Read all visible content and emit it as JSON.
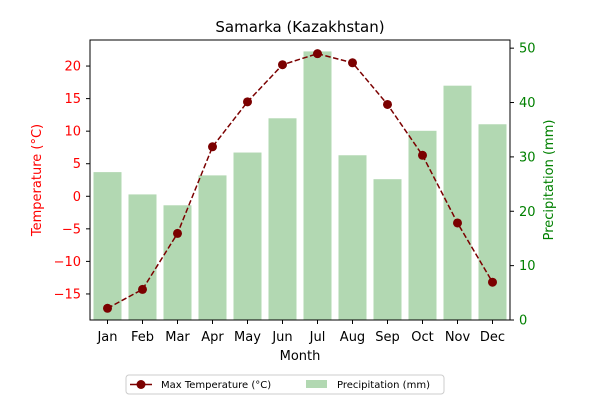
{
  "chart_data": {
    "type": "bar+line",
    "title": "Samarka (Kazakhstan)",
    "xlabel": "Month",
    "ylabel_left": "Temperature (°C)",
    "ylabel_right": "Precipitation (mm)",
    "categories": [
      "Jan",
      "Feb",
      "Mar",
      "Apr",
      "May",
      "Jun",
      "Jul",
      "Aug",
      "Sep",
      "Oct",
      "Nov",
      "Dec"
    ],
    "ylim_left": [
      -19,
      24
    ],
    "ylim_right": [
      0,
      51.5
    ],
    "yticks_left": [
      -15,
      -10,
      -5,
      0,
      5,
      10,
      15,
      20
    ],
    "yticks_left_labels": [
      "−15",
      "−10",
      "−5",
      "0",
      "5",
      "10",
      "15",
      "20"
    ],
    "yticks_right": [
      0,
      10,
      20,
      30,
      40,
      50
    ],
    "grid": false,
    "legend_position": "bottom-center",
    "series": [
      {
        "name": "Max Temperature (°C)",
        "kind": "line",
        "axis": "left",
        "color": "#7b0000",
        "values": [
          -17.2,
          -14.3,
          -5.7,
          7.6,
          14.5,
          20.2,
          21.9,
          20.5,
          14.1,
          6.3,
          -4.1,
          -13.2
        ]
      },
      {
        "name": "Precipitation (mm)",
        "kind": "bar",
        "axis": "right",
        "color": "#b2d8b2",
        "values": [
          27.2,
          23.1,
          21.1,
          26.6,
          30.8,
          37.1,
          49.4,
          30.3,
          25.9,
          34.8,
          43.1,
          36.0
        ]
      }
    ],
    "colors": {
      "left_axis": "#ff0000",
      "right_axis": "#008000",
      "text": "#000000"
    }
  }
}
